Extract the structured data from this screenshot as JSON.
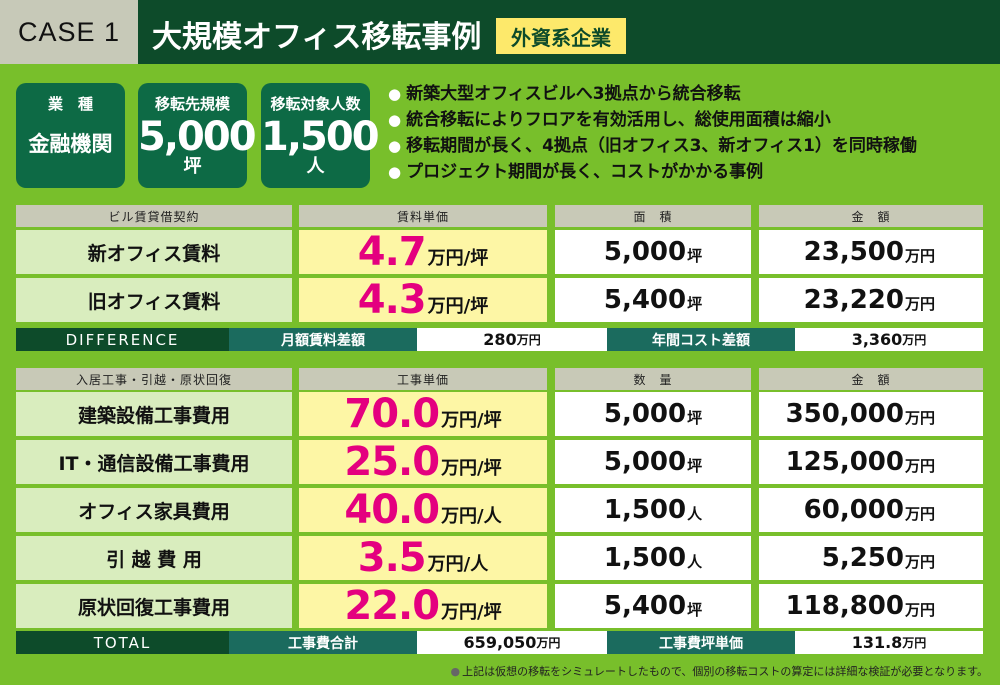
{
  "header": {
    "case_label": "CASE 1",
    "title": "大規模オフィス移転事例",
    "tag": "外資系企業"
  },
  "info": [
    {
      "label": "業　種",
      "value": "金融機関"
    },
    {
      "label": "移転先規模",
      "number": "5,000",
      "unit": "坪"
    },
    {
      "label": "移転対象人数",
      "number": "1,500",
      "unit": "人"
    }
  ],
  "bullets": [
    "新築大型オフィスビルへ3拠点から統合移転",
    "統合移転によりフロアを有効活用し、総使用面積は縮小",
    "移転期間が長く、4拠点（旧オフィス3、新オフィス1）を同時稼働",
    "プロジェクト期間が長く、コストがかかる事例"
  ],
  "rent_table": {
    "headers": [
      "ビル賃貸借契約",
      "賃料単価",
      "面　積",
      "金　額"
    ],
    "rows": [
      {
        "label": "新オフィス賃料",
        "price": "4.7",
        "price_unit": "万円/坪",
        "qty": "5,000",
        "qty_unit": "坪",
        "amount": "23,500",
        "amount_unit": "万円"
      },
      {
        "label": "旧オフィス賃料",
        "price": "4.3",
        "price_unit": "万円/坪",
        "qty": "5,400",
        "qty_unit": "坪",
        "amount": "23,220",
        "amount_unit": "万円"
      }
    ]
  },
  "difference": {
    "label": "DIFFERENCE",
    "monthly_label": "月額賃料差額",
    "monthly_value": "280",
    "monthly_unit": "万円",
    "annual_label": "年間コスト差額",
    "annual_value": "3,360",
    "annual_unit": "万円"
  },
  "work_table": {
    "headers": [
      "入居工事・引越・原状回復",
      "工事単価",
      "数　量",
      "金　額"
    ],
    "rows": [
      {
        "label": "建築設備工事費用",
        "price": "70.0",
        "price_unit": "万円/坪",
        "qty": "5,000",
        "qty_unit": "坪",
        "amount": "350,000",
        "amount_unit": "万円"
      },
      {
        "label": "IT・通信設備工事費用",
        "price": "25.0",
        "price_unit": "万円/坪",
        "qty": "5,000",
        "qty_unit": "坪",
        "amount": "125,000",
        "amount_unit": "万円"
      },
      {
        "label": "オフィス家具費用",
        "price": "40.0",
        "price_unit": "万円/人",
        "qty": "1,500",
        "qty_unit": "人",
        "amount": "60,000",
        "amount_unit": "万円"
      },
      {
        "label": "引 越 費 用",
        "price": "3.5",
        "price_unit": "万円/人",
        "qty": "1,500",
        "qty_unit": "人",
        "amount": "5,250",
        "amount_unit": "万円"
      },
      {
        "label": "原状回復工事費用",
        "price": "22.0",
        "price_unit": "万円/坪",
        "qty": "5,400",
        "qty_unit": "坪",
        "amount": "118,800",
        "amount_unit": "万円"
      }
    ]
  },
  "total": {
    "label": "TOTAL",
    "sum_label": "工事費合計",
    "sum_value": "659,050",
    "sum_unit": "万円",
    "unit_label": "工事費坪単価",
    "unit_value": "131.8",
    "unit_unit": "万円"
  },
  "note": "上記は仮想の移転をシミュレートしたもので、個別の移転コストの算定には詳細な検証が必要となります。",
  "colors": {
    "background": "#78bf2b",
    "dark_green": "#0d4b2a",
    "teal": "#1b6b5e",
    "price_highlight": "#e4007f",
    "price_bg": "#fdf6a5",
    "tag_bg": "#fde96b"
  }
}
